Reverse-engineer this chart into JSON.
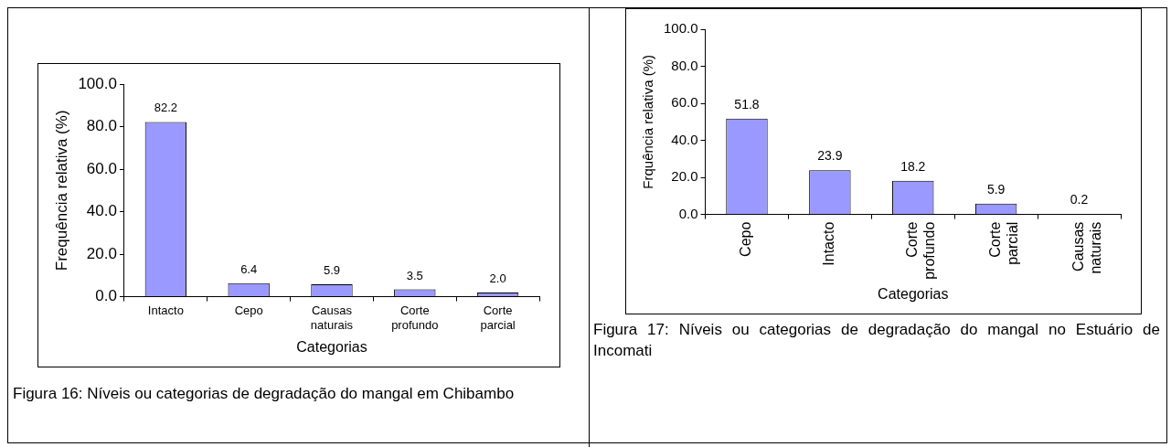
{
  "chart_data": [
    {
      "type": "bar",
      "categories": [
        "Intacto",
        "Cepo",
        "Causas naturais",
        "Corte profundo",
        "Corte parcial"
      ],
      "values": [
        82.2,
        6.4,
        5.9,
        3.5,
        2.0
      ],
      "value_labels": [
        "82.2",
        "6.4",
        "5.9",
        "3.5",
        "2.0"
      ],
      "color": "#9999ff",
      "xlabel": "Categorias",
      "ylabel": "Frequência relativa (%)",
      "ylim": [
        0,
        100
      ],
      "yticks": [
        {
          "value": 0,
          "label": "0.0"
        },
        {
          "value": 20,
          "label": "20.0"
        },
        {
          "value": 40,
          "label": "40.0"
        },
        {
          "value": 60,
          "label": "60.0"
        },
        {
          "value": 80,
          "label": "80.0"
        },
        {
          "value": 100,
          "label": "100.0"
        }
      ],
      "grid": false,
      "legend": false,
      "annotations": [
        "Figura 16: Níveis ou categorias de degradação do mangal em Chibambo"
      ]
    },
    {
      "type": "bar",
      "categories": [
        "Cepo",
        "Intacto",
        "Corte profundo",
        "Corte parcial",
        "Causas naturais"
      ],
      "values": [
        51.8,
        23.9,
        18.2,
        5.9,
        0.2
      ],
      "value_labels": [
        "51.8",
        "23.9",
        "18.2",
        "5.9",
        "0.2"
      ],
      "color": "#9999ff",
      "xlabel": "Categorias",
      "ylabel": "Frquência relativa (%)",
      "ylim": [
        0,
        100
      ],
      "yticks": [
        {
          "value": 0,
          "label": "0.0"
        },
        {
          "value": 20,
          "label": "20.0"
        },
        {
          "value": 40,
          "label": "40.0"
        },
        {
          "value": 60,
          "label": "60.0"
        },
        {
          "value": 80,
          "label": "80.0"
        },
        {
          "value": 100,
          "label": "100.0"
        }
      ],
      "grid": false,
      "legend": false,
      "annotations": [
        "Figura 17: Níveis ou categorias de degradação do mangal no Estuário de Incomati"
      ]
    }
  ]
}
